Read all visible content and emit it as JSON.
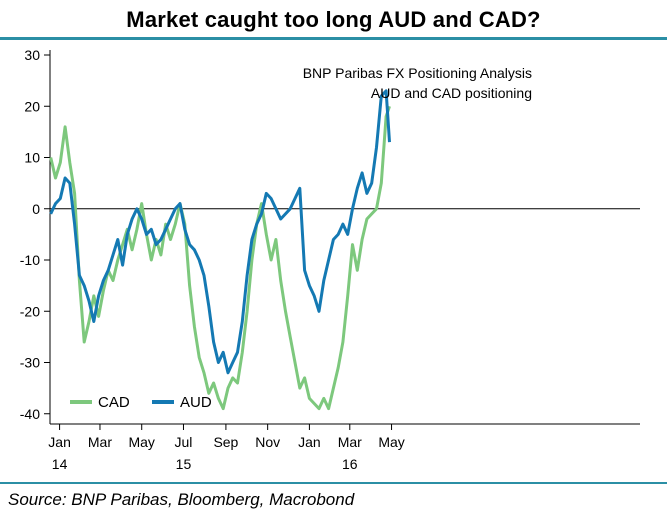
{
  "title": "Market caught too long AUD and CAD?",
  "source": "Source:  BNP Paribas, Bloomberg, Macrobond",
  "colors": {
    "CAD": "#7dc87d",
    "AUD": "#1479b3",
    "zero_line": "#000000",
    "frame_rule": "#2b8fa5"
  },
  "chart_data": {
    "type": "line",
    "title": "",
    "annotation": [
      "BNP Paribas FX Positioning Analysis",
      "AUD and CAD positioning"
    ],
    "ylim": [
      -42,
      30
    ],
    "yticks": [
      30,
      20,
      10,
      0,
      -10,
      -20,
      -30,
      -40
    ],
    "xrange": [
      "2014-01-01",
      "2016-05-12"
    ],
    "xticks": [
      {
        "date": "2014-01-15",
        "label": "Jan",
        "sub": "14"
      },
      {
        "date": "2014-03-15",
        "label": "Mar",
        "sub": ""
      },
      {
        "date": "2014-05-15",
        "label": "May",
        "sub": ""
      },
      {
        "date": "2014-07-15",
        "label": "Jul",
        "sub": "15"
      },
      {
        "date": "2014-09-15",
        "label": "Sep",
        "sub": ""
      },
      {
        "date": "2014-11-15",
        "label": "Nov",
        "sub": ""
      },
      {
        "date": "2015-01-15",
        "label": "Jan",
        "sub": ""
      },
      {
        "date": "2015-03-15",
        "label": "Mar",
        "sub": "16"
      },
      {
        "date": "2015-05-15",
        "label": "May",
        "sub": ""
      }
    ],
    "legend": {
      "placement": "bottom-left",
      "entries": [
        "CAD",
        "AUD"
      ]
    },
    "series": [
      {
        "name": "CAD",
        "points": [
          [
            "2014-01-02",
            10
          ],
          [
            "2014-01-09",
            6
          ],
          [
            "2014-01-16",
            9
          ],
          [
            "2014-01-23",
            16
          ],
          [
            "2014-01-30",
            9
          ],
          [
            "2014-02-06",
            3
          ],
          [
            "2014-02-13",
            -14
          ],
          [
            "2014-02-20",
            -26
          ],
          [
            "2014-02-27",
            -22
          ],
          [
            "2014-03-06",
            -17
          ],
          [
            "2014-03-13",
            -21
          ],
          [
            "2014-03-20",
            -16
          ],
          [
            "2014-03-27",
            -12
          ],
          [
            "2014-04-03",
            -14
          ],
          [
            "2014-04-10",
            -10
          ],
          [
            "2014-04-17",
            -7
          ],
          [
            "2014-04-24",
            -4
          ],
          [
            "2014-05-01",
            -8
          ],
          [
            "2014-05-08",
            -4
          ],
          [
            "2014-05-15",
            1
          ],
          [
            "2014-05-22",
            -5
          ],
          [
            "2014-05-29",
            -10
          ],
          [
            "2014-06-05",
            -6
          ],
          [
            "2014-06-12",
            -9
          ],
          [
            "2014-06-19",
            -3
          ],
          [
            "2014-06-26",
            -6
          ],
          [
            "2014-07-03",
            -3
          ],
          [
            "2014-07-10",
            1
          ],
          [
            "2014-07-17",
            -3
          ],
          [
            "2014-07-24",
            -15
          ],
          [
            "2014-07-31",
            -23
          ],
          [
            "2014-08-07",
            -29
          ],
          [
            "2014-08-14",
            -32
          ],
          [
            "2014-08-21",
            -36
          ],
          [
            "2014-08-28",
            -34
          ],
          [
            "2014-09-04",
            -37
          ],
          [
            "2014-09-11",
            -39
          ],
          [
            "2014-09-18",
            -35
          ],
          [
            "2014-09-25",
            -33
          ],
          [
            "2014-10-02",
            -34
          ],
          [
            "2014-10-09",
            -28
          ],
          [
            "2014-10-16",
            -20
          ],
          [
            "2014-10-23",
            -10
          ],
          [
            "2014-10-30",
            -3
          ],
          [
            "2014-11-06",
            1
          ],
          [
            "2014-11-13",
            -5
          ],
          [
            "2014-11-20",
            -10
          ],
          [
            "2014-11-27",
            -6
          ],
          [
            "2014-12-04",
            -14
          ],
          [
            "2014-12-11",
            -20
          ],
          [
            "2014-12-18",
            -25
          ],
          [
            "2014-12-25",
            -30
          ],
          [
            "2015-01-01",
            -35
          ],
          [
            "2015-01-08",
            -33
          ],
          [
            "2015-01-15",
            -37
          ],
          [
            "2015-01-22",
            -38
          ],
          [
            "2015-01-29",
            -39
          ],
          [
            "2015-02-05",
            -37
          ],
          [
            "2015-02-12",
            -39
          ],
          [
            "2015-02-19",
            -35
          ],
          [
            "2015-02-26",
            -31
          ],
          [
            "2015-03-05",
            -26
          ],
          [
            "2015-03-12",
            -17
          ],
          [
            "2015-03-19",
            -7
          ],
          [
            "2015-03-26",
            -12
          ],
          [
            "2015-04-02",
            -6
          ],
          [
            "2015-04-09",
            -2
          ],
          [
            "2015-04-16",
            -1
          ],
          [
            "2015-04-23",
            0
          ],
          [
            "2015-04-30",
            5
          ],
          [
            "2015-05-07",
            18
          ],
          [
            "2015-05-12",
            20
          ]
        ]
      },
      {
        "name": "AUD",
        "points": [
          [
            "2014-01-02",
            -1
          ],
          [
            "2014-01-09",
            1
          ],
          [
            "2014-01-16",
            2
          ],
          [
            "2014-01-23",
            6
          ],
          [
            "2014-01-30",
            5
          ],
          [
            "2014-02-06",
            -3
          ],
          [
            "2014-02-13",
            -13
          ],
          [
            "2014-02-20",
            -15
          ],
          [
            "2014-02-27",
            -18
          ],
          [
            "2014-03-06",
            -22
          ],
          [
            "2014-03-13",
            -17
          ],
          [
            "2014-03-20",
            -14
          ],
          [
            "2014-03-27",
            -12
          ],
          [
            "2014-04-03",
            -9
          ],
          [
            "2014-04-10",
            -6
          ],
          [
            "2014-04-17",
            -11
          ],
          [
            "2014-04-24",
            -5
          ],
          [
            "2014-05-01",
            -2
          ],
          [
            "2014-05-08",
            0
          ],
          [
            "2014-05-15",
            -2
          ],
          [
            "2014-05-22",
            -5
          ],
          [
            "2014-05-29",
            -4
          ],
          [
            "2014-06-05",
            -7
          ],
          [
            "2014-06-12",
            -6
          ],
          [
            "2014-06-19",
            -4
          ],
          [
            "2014-06-26",
            -2
          ],
          [
            "2014-07-03",
            0
          ],
          [
            "2014-07-10",
            1
          ],
          [
            "2014-07-17",
            -4
          ],
          [
            "2014-07-24",
            -7
          ],
          [
            "2014-07-31",
            -8
          ],
          [
            "2014-08-07",
            -10
          ],
          [
            "2014-08-14",
            -13
          ],
          [
            "2014-08-21",
            -19
          ],
          [
            "2014-08-28",
            -26
          ],
          [
            "2014-09-04",
            -30
          ],
          [
            "2014-09-11",
            -28
          ],
          [
            "2014-09-18",
            -32
          ],
          [
            "2014-09-25",
            -30
          ],
          [
            "2014-10-02",
            -28
          ],
          [
            "2014-10-09",
            -22
          ],
          [
            "2014-10-16",
            -13
          ],
          [
            "2014-10-23",
            -6
          ],
          [
            "2014-10-30",
            -3
          ],
          [
            "2014-11-06",
            -1
          ],
          [
            "2014-11-13",
            3
          ],
          [
            "2014-11-20",
            2
          ],
          [
            "2014-11-27",
            0
          ],
          [
            "2014-12-04",
            -2
          ],
          [
            "2014-12-11",
            -1
          ],
          [
            "2014-12-18",
            0
          ],
          [
            "2014-12-25",
            2
          ],
          [
            "2015-01-01",
            4
          ],
          [
            "2015-01-08",
            -12
          ],
          [
            "2015-01-15",
            -15
          ],
          [
            "2015-01-22",
            -17
          ],
          [
            "2015-01-29",
            -20
          ],
          [
            "2015-02-05",
            -14
          ],
          [
            "2015-02-12",
            -10
          ],
          [
            "2015-02-19",
            -6
          ],
          [
            "2015-02-26",
            -5
          ],
          [
            "2015-03-05",
            -3
          ],
          [
            "2015-03-12",
            -5
          ],
          [
            "2015-03-19",
            0
          ],
          [
            "2015-03-26",
            4
          ],
          [
            "2015-04-02",
            7
          ],
          [
            "2015-04-09",
            3
          ],
          [
            "2015-04-16",
            5
          ],
          [
            "2015-04-23",
            12
          ],
          [
            "2015-04-30",
            22
          ],
          [
            "2015-05-07",
            23
          ],
          [
            "2015-05-12",
            13
          ]
        ]
      }
    ]
  }
}
